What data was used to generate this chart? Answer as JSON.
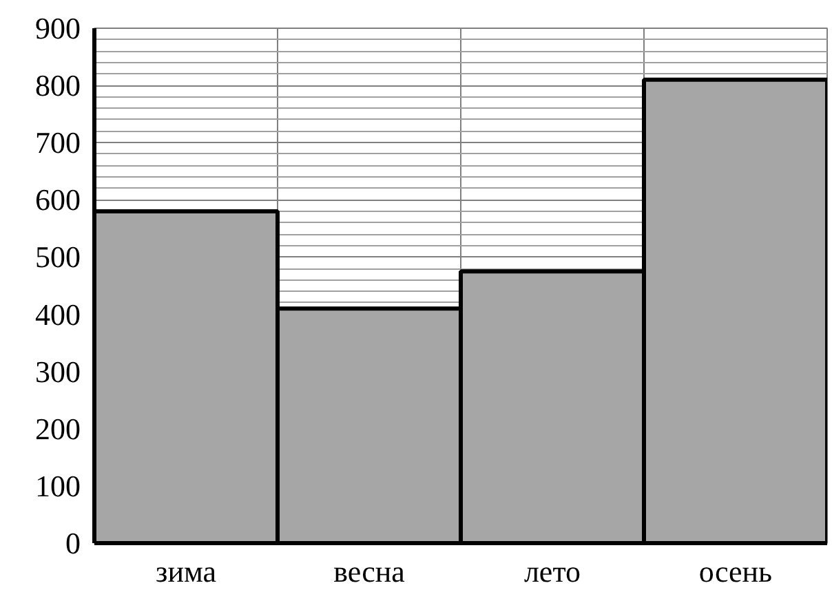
{
  "chart_data": {
    "type": "bar",
    "categories": [
      "зима",
      "весна",
      "лето",
      "осень"
    ],
    "values": [
      580,
      410,
      475,
      810
    ],
    "color": "#a6a6a6",
    "ylim": [
      0,
      900
    ],
    "yticks": [
      0,
      100,
      200,
      300,
      400,
      500,
      600,
      700,
      800,
      900
    ],
    "grid": true
  }
}
